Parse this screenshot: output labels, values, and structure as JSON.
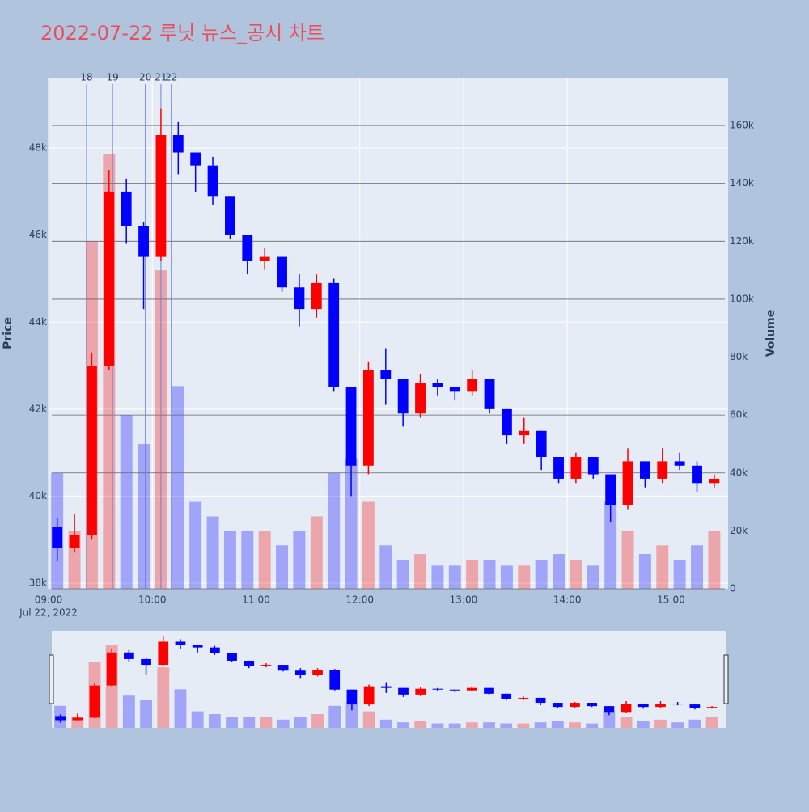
{
  "chart_data": {
    "type": "candlestick",
    "title": "2022-07-22 루닛 뉴스_공시 차트",
    "y_label": "Price",
    "y2_label": "Volume",
    "date_label": "Jul 22, 2022",
    "increasing_color": "#ff0000",
    "decreasing_color": "#0000ff",
    "x": [
      "09:00",
      "09:10",
      "09:20",
      "09:30",
      "09:40",
      "09:50",
      "10:00",
      "10:10",
      "10:20",
      "10:30",
      "10:40",
      "10:50",
      "11:00",
      "11:10",
      "11:20",
      "11:30",
      "11:40",
      "11:50",
      "12:00",
      "12:10",
      "12:20",
      "12:30",
      "12:40",
      "12:50",
      "13:00",
      "13:10",
      "13:20",
      "13:30",
      "13:40",
      "13:50",
      "14:00",
      "14:10",
      "14:20",
      "14:30",
      "14:40",
      "14:50",
      "15:00",
      "15:10",
      "15:20"
    ],
    "open": [
      39300,
      38800,
      39100,
      43000,
      47000,
      46200,
      45500,
      48300,
      47900,
      47600,
      46900,
      46000,
      45400,
      45500,
      44800,
      44300,
      44900,
      42500,
      40700,
      42900,
      42700,
      41900,
      42600,
      42500,
      42400,
      42700,
      42000,
      41400,
      41500,
      40900,
      40400,
      40900,
      40500,
      39800,
      40800,
      40400,
      40800,
      40700,
      40300
    ],
    "high": [
      39500,
      39600,
      43300,
      47500,
      47300,
      46300,
      48900,
      48600,
      47900,
      47800,
      46900,
      46000,
      45700,
      45500,
      45100,
      45100,
      45000,
      42500,
      43100,
      43400,
      42700,
      42800,
      42700,
      42500,
      42900,
      42700,
      42000,
      41800,
      41500,
      40900,
      41000,
      40900,
      40500,
      41100,
      40800,
      41100,
      41000,
      40800,
      40500
    ],
    "low": [
      38500,
      38700,
      39000,
      42900,
      45800,
      44300,
      45400,
      47400,
      47000,
      46700,
      45900,
      45100,
      45200,
      44700,
      43900,
      44100,
      42400,
      40000,
      40500,
      42100,
      41600,
      41800,
      42300,
      42200,
      42300,
      41900,
      41200,
      41200,
      40600,
      40300,
      40300,
      40400,
      39400,
      39700,
      40200,
      40300,
      40600,
      40100,
      40200
    ],
    "close": [
      38800,
      39100,
      43000,
      47000,
      46200,
      45500,
      48300,
      47900,
      47600,
      46900,
      46000,
      45400,
      45500,
      44800,
      44300,
      44900,
      42500,
      40700,
      42900,
      42700,
      41900,
      42600,
      42500,
      42400,
      42700,
      42000,
      41400,
      41500,
      40900,
      40400,
      40900,
      40500,
      39800,
      40800,
      40400,
      40800,
      40700,
      40300,
      40400
    ],
    "volume": [
      40000,
      20000,
      120000,
      150000,
      60000,
      50000,
      110000,
      70000,
      30000,
      25000,
      20000,
      20000,
      20000,
      15000,
      20000,
      25000,
      40000,
      45000,
      30000,
      15000,
      10000,
      12000,
      8000,
      8000,
      10000,
      10000,
      8000,
      8000,
      10000,
      12000,
      10000,
      8000,
      30000,
      20000,
      12000,
      15000,
      10000,
      15000,
      20000
    ],
    "xlim": [
      "09:00",
      "15:33"
    ],
    "xticks": [
      "09:00",
      "10:00",
      "11:00",
      "12:00",
      "13:00",
      "14:00",
      "15:00"
    ],
    "ylim": [
      37870,
      49620
    ],
    "yticks": [
      {
        "value": 38000,
        "label": "38k"
      },
      {
        "value": 40000,
        "label": "40k"
      },
      {
        "value": 42000,
        "label": "42k"
      },
      {
        "value": 44000,
        "label": "44k"
      },
      {
        "value": 46000,
        "label": "46k"
      },
      {
        "value": 48000,
        "label": "48k"
      }
    ],
    "y2lim": [
      0,
      176500
    ],
    "y2ticks": [
      0,
      {
        "value": 20000,
        "label": "20k"
      },
      {
        "value": 40000,
        "label": "40k"
      },
      {
        "value": 60000,
        "label": "60k"
      },
      {
        "value": 80000,
        "label": "80k"
      },
      {
        "value": 100000,
        "label": "100k"
      },
      {
        "value": 120000,
        "label": "120k"
      },
      {
        "value": 140000,
        "label": "140k"
      },
      {
        "value": 160000,
        "label": "160k"
      }
    ],
    "markers": [
      {
        "x": "09:22",
        "label": "18"
      },
      {
        "x": "09:37",
        "label": "19"
      },
      {
        "x": "09:56",
        "label": "20"
      },
      {
        "x": "10:05",
        "label": "21"
      },
      {
        "x": "10:11",
        "label": "22"
      }
    ],
    "grid": true,
    "range_slider": true
  }
}
